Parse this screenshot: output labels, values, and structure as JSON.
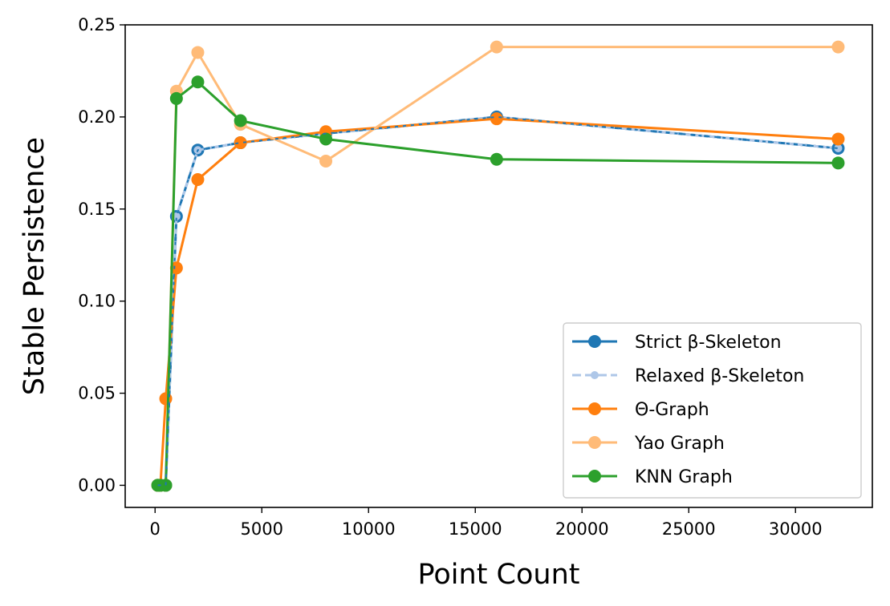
{
  "chart_data": {
    "type": "line",
    "xlabel": "Point Count",
    "ylabel": "Stable Persistence",
    "xlim": [
      -1400,
      33600
    ],
    "ylim": [
      -0.012,
      0.25
    ],
    "x_ticks": [
      0,
      5000,
      10000,
      15000,
      20000,
      25000,
      30000
    ],
    "x_tick_labels": [
      "0",
      "5000",
      "10000",
      "15000",
      "20000",
      "25000",
      "30000"
    ],
    "y_ticks": [
      0.0,
      0.05,
      0.1,
      0.15,
      0.2,
      0.25
    ],
    "y_tick_labels": [
      "0.00",
      "0.05",
      "0.10",
      "0.15",
      "0.20",
      "0.25"
    ],
    "grid": false,
    "legend_position": "lower-right",
    "series": [
      {
        "name": "Strict β-Skeleton",
        "color": "#1f77b4",
        "line_style": "solid",
        "marker_size": "large",
        "x": [
          125,
          250,
          500,
          1000,
          2000,
          4000,
          8000,
          16000,
          32000
        ],
        "y": [
          0.0,
          0.0,
          0.0,
          0.146,
          0.182,
          0.186,
          0.191,
          0.2,
          0.183
        ]
      },
      {
        "name": "Relaxed β-Skeleton",
        "color": "#aec7e8",
        "line_style": "dashed",
        "marker_size": "small",
        "x": [
          125,
          250,
          500,
          1000,
          2000,
          4000,
          8000,
          16000,
          32000
        ],
        "y": [
          0.0,
          0.0,
          0.0,
          0.146,
          0.182,
          0.186,
          0.191,
          0.2,
          0.183
        ]
      },
      {
        "name": "Θ-Graph",
        "color": "#ff7f0e",
        "line_style": "solid",
        "marker_size": "large",
        "x": [
          125,
          250,
          500,
          1000,
          2000,
          4000,
          8000,
          16000,
          32000
        ],
        "y": [
          0.0,
          0.0,
          0.047,
          0.118,
          0.166,
          0.186,
          0.192,
          0.199,
          0.188
        ]
      },
      {
        "name": "Yao Graph",
        "color": "#ffbb78",
        "line_style": "solid",
        "marker_size": "large",
        "x": [
          125,
          250,
          500,
          1000,
          2000,
          4000,
          8000,
          16000,
          32000
        ],
        "y": [
          0.0,
          0.0,
          0.0,
          0.214,
          0.235,
          0.196,
          0.176,
          0.238,
          0.238
        ]
      },
      {
        "name": "KNN Graph",
        "color": "#2ca02c",
        "line_style": "solid",
        "marker_size": "large",
        "x": [
          125,
          250,
          500,
          1000,
          2000,
          4000,
          8000,
          16000,
          32000
        ],
        "y": [
          0.0,
          0.0,
          0.0,
          0.21,
          0.219,
          0.198,
          0.188,
          0.177,
          0.175
        ]
      }
    ]
  }
}
